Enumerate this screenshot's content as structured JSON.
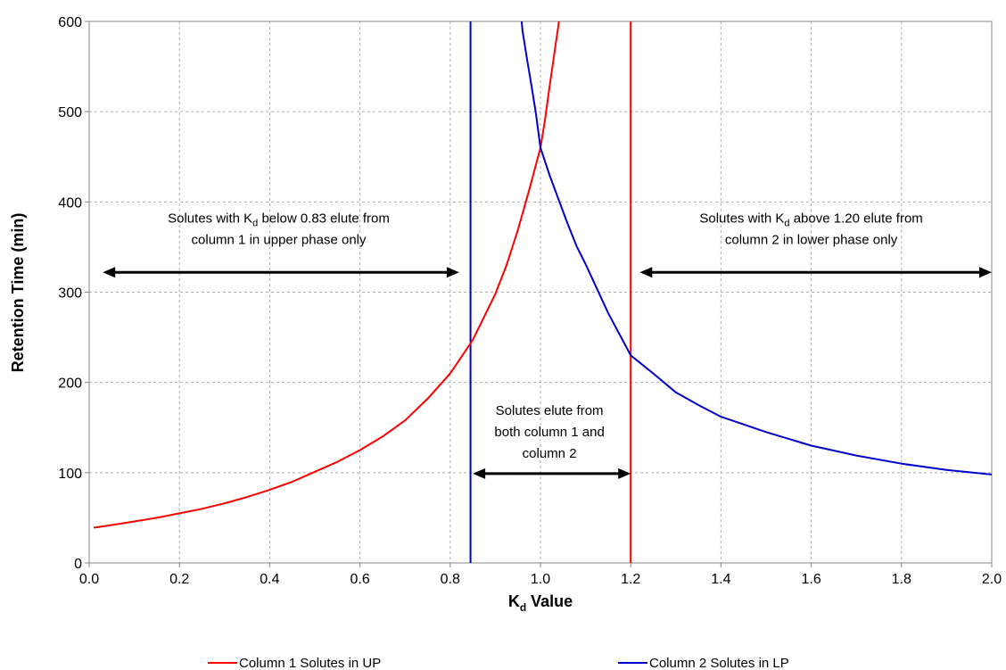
{
  "chart_data": {
    "type": "line",
    "xlabel": "K",
    "xlabel_sub": "d",
    "xlabel_suffix": " Value",
    "ylabel": "Retention Time (min)",
    "xlim": [
      0.0,
      2.0
    ],
    "ylim": [
      0,
      600
    ],
    "x_ticks": [
      "0.0",
      "0.2",
      "0.4",
      "0.6",
      "0.8",
      "1.0",
      "1.2",
      "1.4",
      "1.6",
      "1.8",
      "2.0"
    ],
    "y_ticks": [
      "0",
      "100",
      "200",
      "300",
      "400",
      "500",
      "600"
    ],
    "grid": true,
    "legend_position": "bottom",
    "series": [
      {
        "name": "Column 1 Solutes in UP",
        "color": "#ff0000",
        "x": [
          0.01,
          0.05,
          0.1,
          0.15,
          0.2,
          0.25,
          0.3,
          0.35,
          0.4,
          0.45,
          0.5,
          0.55,
          0.6,
          0.65,
          0.7,
          0.75,
          0.8,
          0.85,
          0.9,
          0.925,
          0.95,
          0.975,
          1.0,
          1.01,
          1.02,
          1.03,
          1.04,
          1.045
        ],
        "y": [
          39,
          42,
          46,
          50,
          55,
          60,
          66,
          73,
          81,
          90,
          101,
          112,
          125,
          140,
          158,
          182,
          210,
          247,
          298,
          330,
          369,
          413,
          460,
          491,
          527,
          562,
          596,
          620
        ]
      },
      {
        "name": "Column 2 Solutes in LP",
        "color": "#0000cc",
        "x": [
          0.955,
          0.96,
          0.97,
          0.98,
          0.99,
          1.0,
          1.02,
          1.04,
          1.06,
          1.08,
          1.1,
          1.15,
          1.2,
          1.25,
          1.3,
          1.35,
          1.4,
          1.5,
          1.6,
          1.7,
          1.8,
          1.9,
          2.0
        ],
        "y": [
          620,
          590,
          559,
          529,
          498,
          460,
          430,
          403,
          376,
          351,
          331,
          277,
          230,
          210,
          189,
          175,
          162,
          145,
          130,
          119,
          110,
          103,
          98
        ]
      }
    ],
    "vertical_lines": [
      {
        "x": 0.845,
        "color": "#0000cc"
      },
      {
        "x": 1.2,
        "color": "#ff0000"
      }
    ],
    "arrows": [
      {
        "x1": 0.03,
        "x2": 0.82,
        "y": 322
      },
      {
        "x1": 0.85,
        "x2": 1.2,
        "y": 99
      },
      {
        "x1": 1.22,
        "x2": 2.0,
        "y": 322
      }
    ],
    "annotations": [
      {
        "lines": [
          [
            "Solutes with K",
            "d",
            " below 0.83 elute from"
          ],
          [
            "column 1 in upper phase only"
          ]
        ],
        "x": 0.42,
        "y": 377
      },
      {
        "lines": [
          [
            "Solutes elute from"
          ],
          [
            "both column 1 and"
          ],
          [
            "column 2"
          ]
        ],
        "x": 1.02,
        "y": 164
      },
      {
        "lines": [
          [
            "Solutes with K",
            "d",
            " above 1.20 elute from"
          ],
          [
            "column 2 in lower phase only"
          ]
        ],
        "x": 1.6,
        "y": 377
      }
    ]
  }
}
